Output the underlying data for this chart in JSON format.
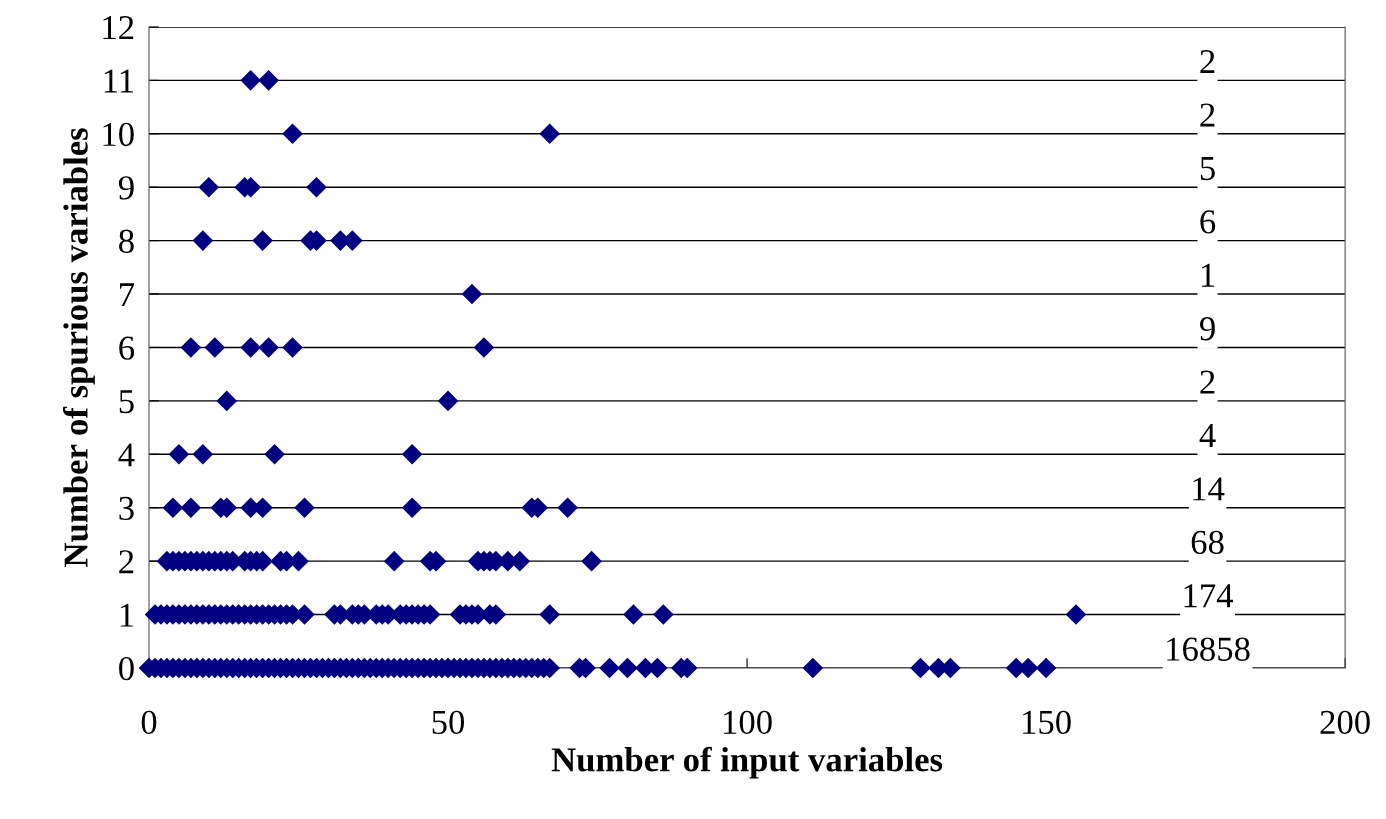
{
  "chart_data": {
    "type": "scatter",
    "xlabel": "Number of input variables",
    "ylabel": "Number of spurious variables",
    "series": [
      {
        "color": "#000080",
        "x": [
          0,
          1,
          2,
          3,
          4,
          5,
          6,
          7,
          8,
          9,
          10,
          11,
          12,
          13,
          14,
          15,
          16,
          17,
          18,
          19,
          20,
          21,
          22,
          23,
          24,
          25,
          26,
          27,
          28,
          29,
          30,
          31,
          32,
          33,
          34,
          35,
          36,
          37,
          38,
          39,
          40,
          41,
          42,
          43,
          44,
          45,
          46,
          47,
          48,
          49,
          50,
          51,
          52,
          53,
          54,
          55,
          56,
          57,
          58,
          59,
          60,
          61,
          62,
          63,
          64,
          65,
          66,
          67,
          72,
          73,
          77,
          80,
          83,
          85,
          89,
          90,
          111,
          129,
          132,
          134,
          145,
          147,
          150,
          1,
          2,
          3,
          4,
          5,
          6,
          7,
          8,
          9,
          10,
          11,
          12,
          13,
          14,
          15,
          16,
          17,
          18,
          19,
          20,
          21,
          22,
          23,
          24,
          26,
          31,
          32,
          34,
          35,
          36,
          38,
          39,
          40,
          42,
          43,
          44,
          45,
          46,
          47,
          52,
          53,
          54,
          55,
          57,
          58,
          67,
          81,
          86,
          155,
          3,
          4,
          5,
          6,
          7,
          8,
          9,
          10,
          11,
          12,
          13,
          14,
          16,
          17,
          18,
          19,
          22,
          23,
          25,
          41,
          47,
          48,
          55,
          56,
          57,
          58,
          60,
          62,
          74,
          4,
          7,
          12,
          13,
          17,
          19,
          26,
          44,
          64,
          65,
          70,
          5,
          9,
          21,
          44,
          13,
          50,
          7,
          11,
          17,
          20,
          24,
          56,
          54,
          9,
          19,
          27,
          28,
          32,
          34,
          10,
          16,
          17,
          28,
          24,
          67,
          17,
          20
        ],
        "values": [
          0,
          0,
          0,
          0,
          0,
          0,
          0,
          0,
          0,
          0,
          0,
          0,
          0,
          0,
          0,
          0,
          0,
          0,
          0,
          0,
          0,
          0,
          0,
          0,
          0,
          0,
          0,
          0,
          0,
          0,
          0,
          0,
          0,
          0,
          0,
          0,
          0,
          0,
          0,
          0,
          0,
          0,
          0,
          0,
          0,
          0,
          0,
          0,
          0,
          0,
          0,
          0,
          0,
          0,
          0,
          0,
          0,
          0,
          0,
          0,
          0,
          0,
          0,
          0,
          0,
          0,
          0,
          0,
          0,
          0,
          0,
          0,
          0,
          0,
          0,
          0,
          0,
          0,
          0,
          0,
          0,
          0,
          0,
          1,
          1,
          1,
          1,
          1,
          1,
          1,
          1,
          1,
          1,
          1,
          1,
          1,
          1,
          1,
          1,
          1,
          1,
          1,
          1,
          1,
          1,
          1,
          1,
          1,
          1,
          1,
          1,
          1,
          1,
          1,
          1,
          1,
          1,
          1,
          1,
          1,
          1,
          1,
          1,
          1,
          1,
          1,
          1,
          1,
          1,
          1,
          1,
          1,
          2,
          2,
          2,
          2,
          2,
          2,
          2,
          2,
          2,
          2,
          2,
          2,
          2,
          2,
          2,
          2,
          2,
          2,
          2,
          2,
          2,
          2,
          2,
          2,
          2,
          2,
          2,
          2,
          2,
          3,
          3,
          3,
          3,
          3,
          3,
          3,
          3,
          3,
          3,
          3,
          4,
          4,
          4,
          4,
          5,
          5,
          6,
          6,
          6,
          6,
          6,
          6,
          7,
          8,
          8,
          8,
          8,
          8,
          8,
          9,
          9,
          9,
          9,
          10,
          10,
          11,
          11
        ]
      }
    ],
    "annotations": [
      "2",
      "2",
      "5",
      "6",
      "1",
      "9",
      "2",
      "4",
      "14",
      "68",
      "174",
      "16858"
    ],
    "xlim": [
      0,
      200
    ],
    "ylim": [
      0,
      12
    ],
    "xticks": [
      0,
      50,
      100,
      150,
      200
    ],
    "yticks": [
      0,
      1,
      2,
      3,
      4,
      5,
      6,
      7,
      8,
      9,
      10,
      11,
      12
    ],
    "grid": "y",
    "marker": "diamond",
    "legend": false
  }
}
